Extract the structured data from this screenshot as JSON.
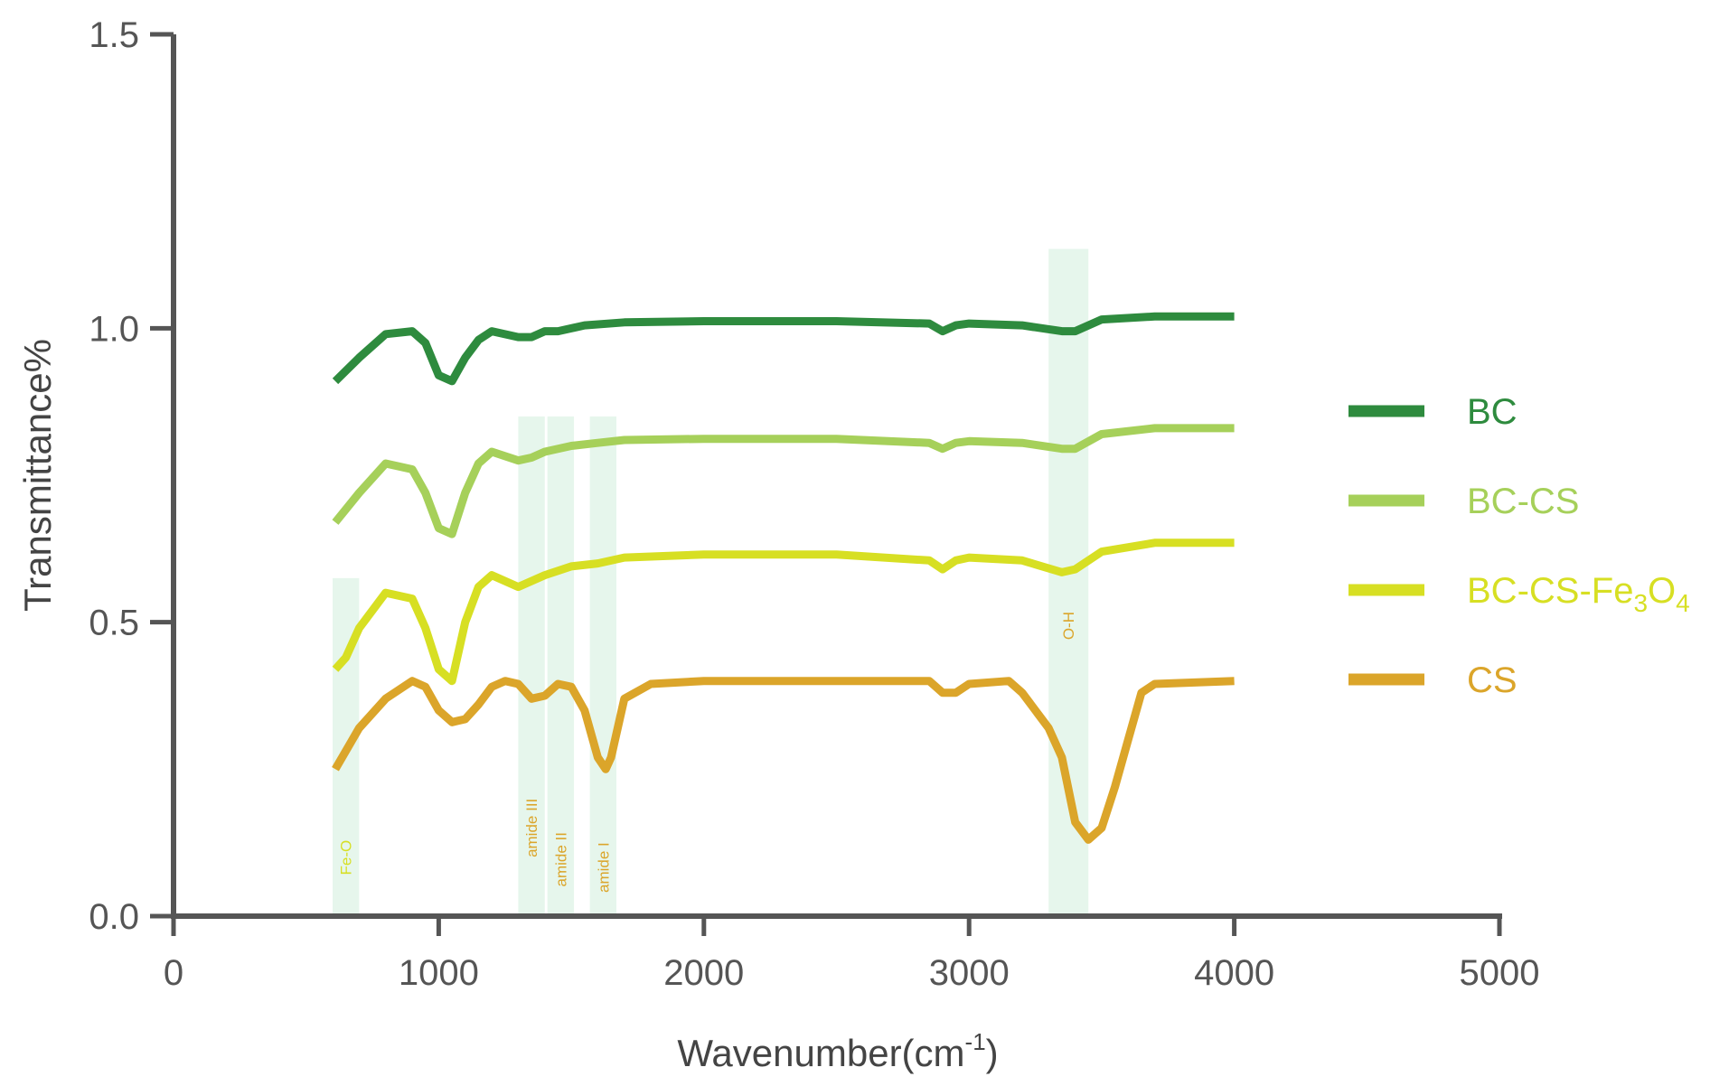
{
  "chart_data": {
    "type": "line",
    "title": "",
    "xlabel": "Wavenumber(cm",
    "xlabel_sup": "-1",
    "xlabel_close": ")",
    "ylabel": "Transmittance%",
    "xlim": [
      0,
      5000
    ],
    "ylim": [
      0.0,
      1.5
    ],
    "x_ticks": [
      "0",
      "1000",
      "2000",
      "3000",
      "4000",
      "5000"
    ],
    "y_ticks": [
      "0.0",
      "0.5",
      "1.0",
      "1.5"
    ],
    "grid": false,
    "legend_position": "right",
    "series": [
      {
        "name": "BC",
        "name_parts": [
          {
            "t": "BC"
          }
        ],
        "color": "#2e8b3e",
        "x": [
          610,
          700,
          800,
          900,
          950,
          1000,
          1050,
          1100,
          1150,
          1200,
          1300,
          1350,
          1400,
          1450,
          1550,
          1700,
          2000,
          2500,
          2850,
          2900,
          2950,
          3000,
          3200,
          3350,
          3400,
          3500,
          3700,
          4000
        ],
        "y": [
          0.91,
          0.95,
          0.99,
          0.995,
          0.975,
          0.92,
          0.91,
          0.95,
          0.98,
          0.995,
          0.985,
          0.985,
          0.995,
          0.995,
          1.005,
          1.01,
          1.012,
          1.012,
          1.008,
          0.995,
          1.005,
          1.008,
          1.005,
          0.995,
          0.995,
          1.015,
          1.02,
          1.02
        ]
      },
      {
        "name": "BC-CS",
        "name_parts": [
          {
            "t": "BC-CS"
          }
        ],
        "color": "#a6d05a",
        "x": [
          610,
          700,
          800,
          900,
          950,
          1000,
          1050,
          1100,
          1150,
          1200,
          1300,
          1350,
          1400,
          1500,
          1600,
          1700,
          2000,
          2500,
          2850,
          2900,
          2950,
          3000,
          3200,
          3350,
          3400,
          3500,
          3700,
          4000
        ],
        "y": [
          0.67,
          0.72,
          0.77,
          0.76,
          0.72,
          0.66,
          0.65,
          0.72,
          0.77,
          0.79,
          0.775,
          0.78,
          0.79,
          0.8,
          0.805,
          0.81,
          0.812,
          0.812,
          0.805,
          0.795,
          0.805,
          0.808,
          0.805,
          0.795,
          0.795,
          0.82,
          0.83,
          0.83
        ]
      },
      {
        "name": "BC-CS-Fe3O4",
        "name_parts": [
          {
            "t": "BC-CS-Fe"
          },
          {
            "t": "3",
            "sub": true
          },
          {
            "t": "O"
          },
          {
            "t": "4",
            "sub": true
          }
        ],
        "color": "#d7df23",
        "x": [
          610,
          650,
          700,
          800,
          900,
          950,
          1000,
          1050,
          1100,
          1150,
          1200,
          1300,
          1350,
          1400,
          1500,
          1600,
          1700,
          2000,
          2500,
          2850,
          2900,
          2950,
          3000,
          3200,
          3350,
          3400,
          3500,
          3700,
          4000
        ],
        "y": [
          0.42,
          0.44,
          0.49,
          0.55,
          0.54,
          0.49,
          0.42,
          0.4,
          0.5,
          0.56,
          0.58,
          0.56,
          0.57,
          0.58,
          0.595,
          0.6,
          0.61,
          0.615,
          0.615,
          0.605,
          0.59,
          0.605,
          0.61,
          0.605,
          0.585,
          0.59,
          0.62,
          0.635,
          0.635
        ]
      },
      {
        "name": "CS",
        "name_parts": [
          {
            "t": "CS"
          }
        ],
        "color": "#dba52a",
        "x": [
          610,
          700,
          800,
          900,
          950,
          1000,
          1050,
          1100,
          1150,
          1200,
          1250,
          1300,
          1350,
          1400,
          1450,
          1500,
          1550,
          1600,
          1630,
          1650,
          1700,
          1800,
          2000,
          2500,
          2850,
          2900,
          2950,
          3000,
          3150,
          3200,
          3300,
          3350,
          3400,
          3450,
          3500,
          3550,
          3600,
          3650,
          3700,
          4000
        ],
        "y": [
          0.25,
          0.32,
          0.37,
          0.4,
          0.39,
          0.35,
          0.33,
          0.335,
          0.36,
          0.39,
          0.4,
          0.395,
          0.37,
          0.375,
          0.395,
          0.39,
          0.35,
          0.27,
          0.25,
          0.27,
          0.37,
          0.395,
          0.4,
          0.4,
          0.4,
          0.38,
          0.38,
          0.395,
          0.4,
          0.38,
          0.32,
          0.27,
          0.16,
          0.13,
          0.15,
          0.22,
          0.3,
          0.38,
          0.395,
          0.4
        ]
      }
    ],
    "bands": [
      {
        "label": "Fe-O",
        "x0": 600,
        "x1": 700,
        "ytop": 0.575,
        "label_color": "#d7df23"
      },
      {
        "label": "amide III",
        "x0": 1300,
        "x1": 1400,
        "ytop": 0.85,
        "label_color": "#dba52a"
      },
      {
        "label": "amide II",
        "x0": 1410,
        "x1": 1510,
        "ytop": 0.85,
        "label_color": "#dba52a"
      },
      {
        "label": "amide I",
        "x0": 1570,
        "x1": 1670,
        "ytop": 0.85,
        "label_color": "#dba52a"
      },
      {
        "label": "O-H",
        "x0": 3300,
        "x1": 3450,
        "ytop": 1.135,
        "label_color": "#dba52a"
      }
    ],
    "band_color": "#e6f6ec"
  }
}
